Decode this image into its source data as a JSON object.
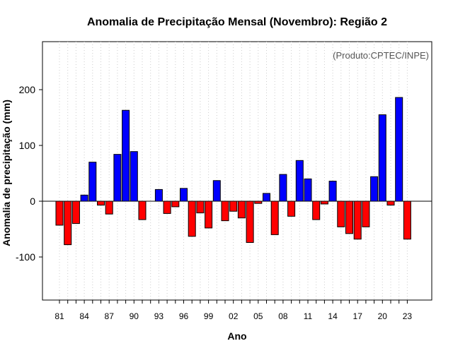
{
  "colors": {
    "positive": "#0000ff",
    "negative": "#ff0000",
    "grid": "#cccccc",
    "zero_line": "#000000"
  },
  "chart_data": {
    "type": "bar",
    "title": "Anomalia de Precipitação Mensal (Novembro): Região 2",
    "xlabel": "Ano",
    "ylabel": "Anomalia de precipitação (mm)",
    "source_note": "(Produto:CPTEC/INPE)",
    "ylim": [
      -180,
      290
    ],
    "yticks": [
      -100,
      0,
      100,
      200
    ],
    "ytick_labels": [
      "-100",
      "0",
      "100",
      "200"
    ],
    "grid": "vertical dotted",
    "categories": [
      "1981",
      "1982",
      "1983",
      "1984",
      "1985",
      "1986",
      "1987",
      "1988",
      "1989",
      "1990",
      "1991",
      "1992",
      "1993",
      "1994",
      "1995",
      "1996",
      "1997",
      "1998",
      "1999",
      "2000",
      "2001",
      "2002",
      "2003",
      "2004",
      "2005",
      "2006",
      "2007",
      "2008",
      "2009",
      "2010",
      "2011",
      "2012",
      "2013",
      "2014",
      "2015",
      "2016",
      "2017",
      "2018",
      "2019",
      "2020",
      "2021",
      "2022",
      "2023"
    ],
    "values": [
      -43,
      -78,
      -40,
      11,
      70,
      -7,
      -23,
      84,
      163,
      89,
      -33,
      0,
      21,
      -22,
      -10,
      23,
      -63,
      -21,
      -48,
      37,
      -35,
      -18,
      -30,
      -74,
      -4,
      14,
      -60,
      48,
      -27,
      73,
      40,
      -33,
      -5,
      36,
      -46,
      -58,
      -68,
      -46,
      44,
      155,
      -7,
      186,
      -68
    ],
    "xtick_labels": [
      {
        "index": 0,
        "label": "81"
      },
      {
        "index": 3,
        "label": "84"
      },
      {
        "index": 6,
        "label": "87"
      },
      {
        "index": 9,
        "label": "90"
      },
      {
        "index": 12,
        "label": "93"
      },
      {
        "index": 15,
        "label": "96"
      },
      {
        "index": 18,
        "label": "99"
      },
      {
        "index": 21,
        "label": "02"
      },
      {
        "index": 24,
        "label": "05"
      },
      {
        "index": 27,
        "label": "08"
      },
      {
        "index": 30,
        "label": "11"
      },
      {
        "index": 33,
        "label": "14"
      },
      {
        "index": 36,
        "label": "17"
      },
      {
        "index": 39,
        "label": "20"
      },
      {
        "index": 42,
        "label": "23"
      }
    ]
  }
}
